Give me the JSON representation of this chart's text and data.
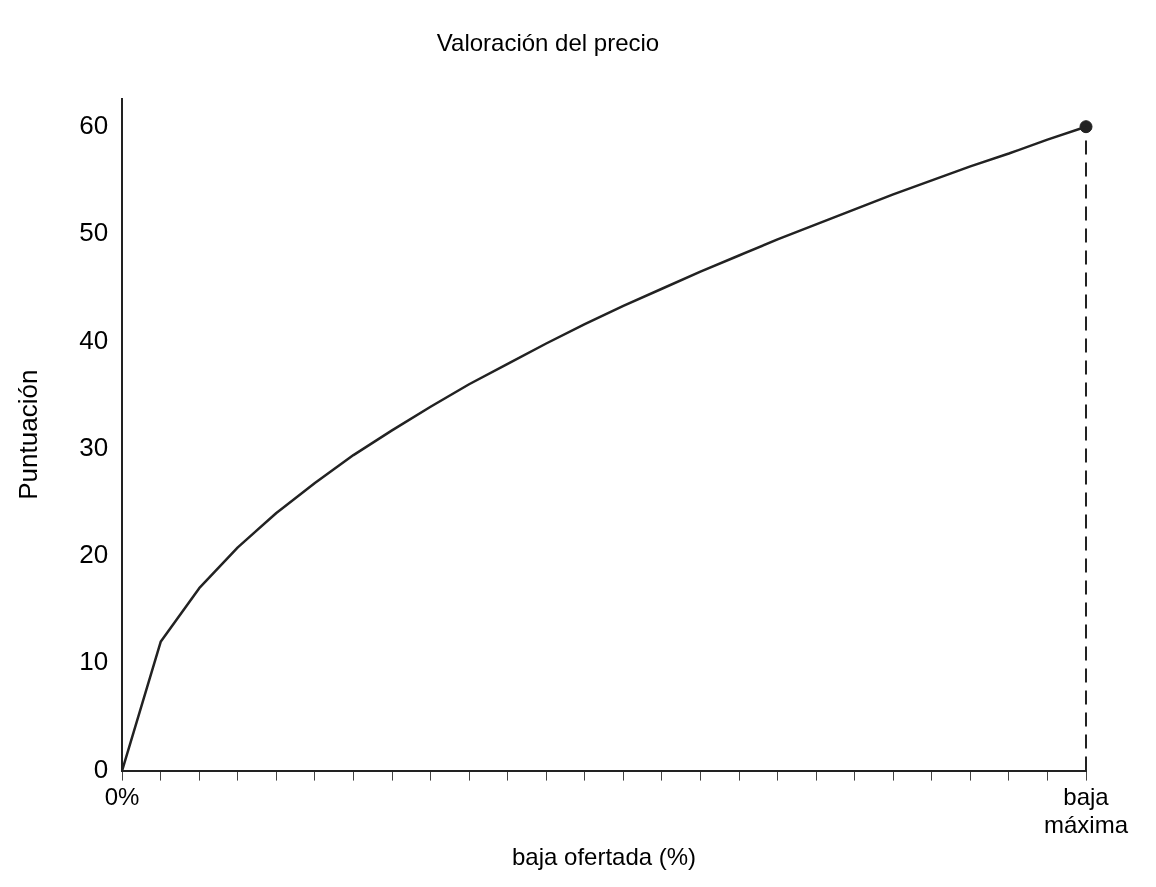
{
  "chart_data": {
    "type": "line",
    "title": "Valoración del precio",
    "xlabel": "baja ofertada (%)",
    "ylabel": "Puntuación",
    "categories": [
      "0%",
      null,
      null,
      null,
      null,
      null,
      null,
      null,
      null,
      null,
      null,
      null,
      null,
      null,
      null,
      null,
      null,
      null,
      null,
      null,
      null,
      null,
      null,
      null,
      null,
      "baja máxima"
    ],
    "series": [
      {
        "type": "line",
        "color": "#222222",
        "marker": "none",
        "values": [
          0,
          12,
          17,
          20.8,
          24,
          26.8,
          29.4,
          31.7,
          33.9,
          36,
          37.9,
          39.8,
          41.6,
          43.3,
          44.9,
          46.5,
          48,
          49.5,
          50.9,
          52.3,
          53.7,
          55,
          56.3,
          57.5,
          58.8,
          60
        ]
      },
      {
        "type": "scatter",
        "color": "#222222",
        "marker": "circle",
        "x": [
          "baja máxima"
        ],
        "values": [
          60
        ]
      }
    ],
    "ylim": [
      0,
      62.6
    ],
    "yticks": [
      0,
      10,
      20,
      30,
      40,
      50,
      60
    ],
    "ref_lines": [
      {
        "axis": "x",
        "value": "baja máxima",
        "line_style": "dashed",
        "color": "#222222"
      }
    ],
    "grid": false,
    "legend": false
  }
}
